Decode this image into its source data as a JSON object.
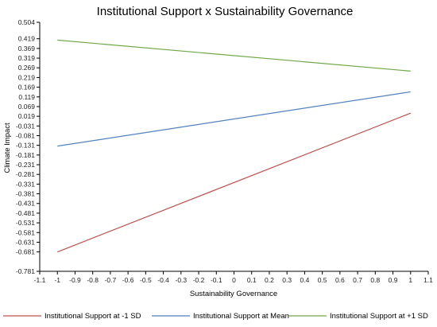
{
  "chart_data": {
    "type": "line",
    "title": "Institutional Support x Sustainability Governance",
    "xlabel": "Sustainability Governance",
    "ylabel": "Climate Impact",
    "xlim": [
      -1.1,
      1.1
    ],
    "ylim": [
      -0.781,
      0.504
    ],
    "x_ticks": [
      "-1.1",
      "-1",
      "-0.9",
      "-0.8",
      "-0.7",
      "-0.6",
      "-0.5",
      "-0.4",
      "-0.3",
      "-0.2",
      "-0.1",
      "0",
      "0.1",
      "0.2",
      "0.3",
      "0.4",
      "0.5",
      "0.6",
      "0.7",
      "0.8",
      "0.9",
      "1",
      "1.1"
    ],
    "y_ticks": [
      "0.504",
      "0.419",
      "0.369",
      "0.319",
      "0.269",
      "0.219",
      "0.169",
      "0.119",
      "0.069",
      "0.019",
      "-0.031",
      "-0.081",
      "-0.131",
      "-0.181",
      "-0.231",
      "-0.281",
      "-0.331",
      "-0.381",
      "-0.431",
      "-0.481",
      "-0.531",
      "-0.581",
      "-0.631",
      "-0.681",
      "-0.781"
    ],
    "x": [
      -1,
      1
    ],
    "series": [
      {
        "name": "Institutional Support at -1 SD",
        "color": "#c0504d",
        "values": [
          -0.681,
          0.035
        ]
      },
      {
        "name": "Institutional Support at Mean",
        "color": "#4f81bd",
        "values": [
          -0.135,
          0.145
        ]
      },
      {
        "name": "Institutional Support at +1 SD",
        "color": "#70a84a",
        "values": [
          0.412,
          0.252
        ]
      }
    ],
    "grid": false,
    "legend_position": "bottom"
  }
}
